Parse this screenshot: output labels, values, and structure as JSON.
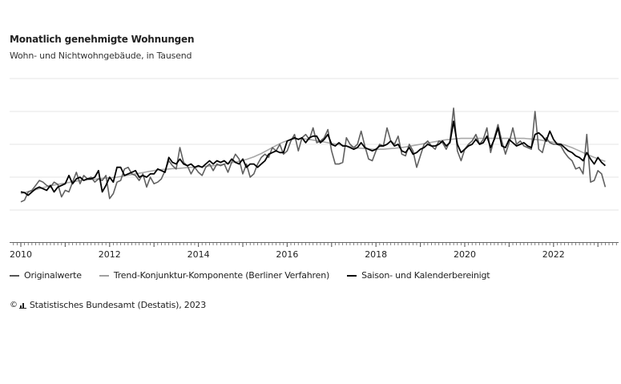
{
  "title": "Monatlich genehmigte Wohnungen",
  "subtitle": "Wohn- und Nichtwohngebäude, in Tausend",
  "legend": [
    {
      "label": "Originalwerte",
      "color": "#555555"
    },
    {
      "label": "Trend-Konjunktur-Komponente (Berliner Verfahren)",
      "color": "#a0a0a0"
    },
    {
      "label": "Saison- und Kalenderbereinigt",
      "color": "#000000"
    }
  ],
  "source": "Statistisches Bundesamt (Destatis), 2023",
  "copyright_symbol": "©",
  "chart_data": {
    "type": "line",
    "title": "Monatlich genehmigte Wohnungen",
    "subtitle": "Wohn- und Nichtwohngebäude, in Tausend",
    "xlabel": "",
    "ylabel": "",
    "x_start": "2010-01",
    "x_end": "2023-03",
    "frequency": "monthly",
    "x_ticks": [
      "2010",
      "2012",
      "2014",
      "2016",
      "2018",
      "2020",
      "2022"
    ],
    "xlim": [
      2010.0,
      2023.5
    ],
    "ylim": [
      0,
      50
    ],
    "y_gridlines": [
      10,
      20,
      30,
      40,
      50
    ],
    "y_tick_labels_shown": false,
    "grid": true,
    "legend_position": "bottom-left",
    "series": [
      {
        "name": "Trend-Konjunktur-Komponente (Berliner Verfahren)",
        "values": [
          15.0,
          15.3,
          15.6,
          15.9,
          16.2,
          16.5,
          16.8,
          17.1,
          17.4,
          17.6,
          17.8,
          18.0,
          18.2,
          18.4,
          18.6,
          18.8,
          19.0,
          19.1,
          19.2,
          19.3,
          19.4,
          19.5,
          19.6,
          19.7,
          19.8,
          19.9,
          20.0,
          20.2,
          20.4,
          20.6,
          20.8,
          21.0,
          21.2,
          21.4,
          21.6,
          21.8,
          22.0,
          22.2,
          22.3,
          22.4,
          22.5,
          22.6,
          22.6,
          22.7,
          22.8,
          22.9,
          23.0,
          23.0,
          23.1,
          23.2,
          23.3,
          23.4,
          23.5,
          23.6,
          23.8,
          24.0,
          24.2,
          24.4,
          24.6,
          24.8,
          25.1,
          25.4,
          25.8,
          26.2,
          26.7,
          27.2,
          27.8,
          28.4,
          29.0,
          29.6,
          30.2,
          30.7,
          31.1,
          31.4,
          31.6,
          31.7,
          31.7,
          31.6,
          31.5,
          31.3,
          31.1,
          30.9,
          30.7,
          30.5,
          30.3,
          30.1,
          29.9,
          29.7,
          29.5,
          29.3,
          29.1,
          28.9,
          28.8,
          28.7,
          28.6,
          28.5,
          28.5,
          28.5,
          28.5,
          28.6,
          28.7,
          28.8,
          28.9,
          29.0,
          29.2,
          29.4,
          29.6,
          29.8,
          30.0,
          30.2,
          30.4,
          30.6,
          30.8,
          31.0,
          31.2,
          31.4,
          31.5,
          31.6,
          31.7,
          31.8,
          31.8,
          31.8,
          31.8,
          31.8,
          31.8,
          31.8,
          31.8,
          31.8,
          31.8,
          31.8,
          31.8,
          31.8,
          31.8,
          31.8,
          31.8,
          31.8,
          31.8,
          31.7,
          31.6,
          31.5,
          31.4,
          31.2,
          31.0,
          30.8,
          30.6,
          30.4,
          30.1,
          29.8,
          29.4,
          29.0,
          28.5,
          28.0,
          27.5,
          27.0,
          26.5,
          26.0,
          25.6,
          25.2,
          24.8
        ]
      },
      {
        "name": "Originalwerte",
        "values": [
          12.5,
          13.0,
          15.5,
          16.0,
          17.5,
          19.0,
          18.5,
          17.5,
          17.0,
          18.5,
          17.8,
          14.0,
          16.0,
          15.5,
          18.5,
          21.5,
          18.0,
          20.5,
          19.5,
          20.0,
          18.5,
          19.5,
          19.0,
          20.5,
          13.5,
          15.0,
          18.5,
          19.0,
          22.5,
          23.0,
          21.0,
          20.5,
          19.0,
          21.0,
          17.0,
          20.0,
          18.0,
          18.5,
          19.5,
          22.0,
          25.0,
          23.5,
          22.5,
          29.0,
          24.5,
          23.5,
          21.0,
          23.0,
          21.5,
          20.5,
          23.0,
          24.0,
          22.0,
          24.0,
          23.5,
          24.0,
          21.5,
          24.5,
          27.0,
          25.5,
          21.0,
          24.0,
          20.0,
          21.0,
          24.0,
          26.0,
          27.0,
          26.0,
          29.0,
          28.0,
          30.0,
          27.0,
          28.0,
          31.0,
          33.0,
          28.0,
          32.0,
          33.0,
          31.5,
          35.0,
          30.5,
          31.0,
          32.0,
          34.5,
          28.0,
          24.0,
          24.0,
          24.5,
          32.0,
          30.0,
          29.0,
          30.0,
          34.0,
          29.5,
          25.5,
          25.0,
          28.0,
          30.0,
          29.5,
          35.0,
          31.0,
          30.0,
          32.5,
          27.0,
          26.5,
          30.0,
          28.0,
          23.0,
          26.5,
          30.0,
          31.0,
          29.5,
          28.5,
          31.0,
          30.5,
          28.5,
          31.0,
          41.0,
          28.0,
          25.0,
          28.5,
          30.0,
          31.0,
          33.0,
          30.0,
          31.5,
          35.0,
          27.5,
          32.0,
          36.0,
          31.0,
          27.0,
          30.5,
          35.0,
          30.0,
          31.0,
          29.5,
          29.0,
          28.5,
          40.0,
          28.5,
          27.5,
          32.0,
          30.5,
          30.0,
          30.0,
          29.5,
          27.5,
          26.0,
          25.0,
          22.5,
          23.0,
          21.0,
          33.0,
          18.5,
          19.0,
          22.0,
          21.0,
          17.0
        ]
      },
      {
        "name": "Saison- und Kalenderbereinigt",
        "values": [
          15.5,
          15.3,
          14.5,
          15.5,
          16.5,
          17.0,
          16.5,
          16.0,
          17.5,
          15.5,
          17.0,
          17.5,
          18.0,
          20.5,
          18.0,
          19.5,
          20.0,
          19.0,
          19.5,
          19.5,
          20.0,
          22.0,
          15.5,
          17.5,
          20.0,
          18.5,
          23.0,
          23.0,
          20.5,
          21.0,
          21.5,
          22.0,
          20.0,
          20.5,
          20.0,
          21.0,
          21.0,
          22.5,
          22.0,
          21.5,
          26.0,
          24.5,
          24.0,
          25.5,
          24.0,
          23.5,
          24.0,
          23.0,
          23.5,
          23.0,
          24.0,
          25.0,
          24.0,
          25.0,
          24.5,
          25.0,
          24.0,
          25.5,
          24.5,
          24.0,
          25.5,
          23.0,
          24.0,
          24.0,
          23.0,
          24.0,
          25.0,
          27.0,
          27.5,
          28.0,
          27.5,
          27.5,
          31.0,
          31.5,
          32.0,
          31.5,
          32.0,
          30.5,
          32.0,
          32.5,
          32.5,
          30.5,
          31.5,
          33.0,
          30.0,
          29.5,
          30.5,
          29.5,
          29.5,
          29.0,
          28.5,
          29.0,
          30.5,
          29.0,
          28.5,
          28.0,
          28.5,
          29.5,
          29.5,
          30.0,
          31.0,
          29.5,
          30.0,
          28.0,
          27.5,
          29.0,
          27.0,
          27.5,
          28.5,
          29.0,
          30.0,
          29.5,
          29.5,
          30.0,
          31.0,
          29.5,
          30.5,
          37.0,
          30.0,
          27.5,
          28.5,
          29.5,
          30.0,
          31.5,
          30.0,
          30.5,
          32.5,
          29.0,
          31.5,
          35.0,
          29.5,
          29.0,
          31.5,
          30.5,
          29.5,
          30.0,
          30.5,
          29.5,
          29.0,
          33.0,
          33.5,
          32.5,
          31.0,
          34.0,
          31.5,
          30.0,
          30.0,
          29.0,
          28.0,
          27.5,
          26.5,
          26.0,
          25.0,
          27.5,
          25.5,
          24.0,
          26.0,
          24.5,
          23.5
        ]
      }
    ]
  }
}
